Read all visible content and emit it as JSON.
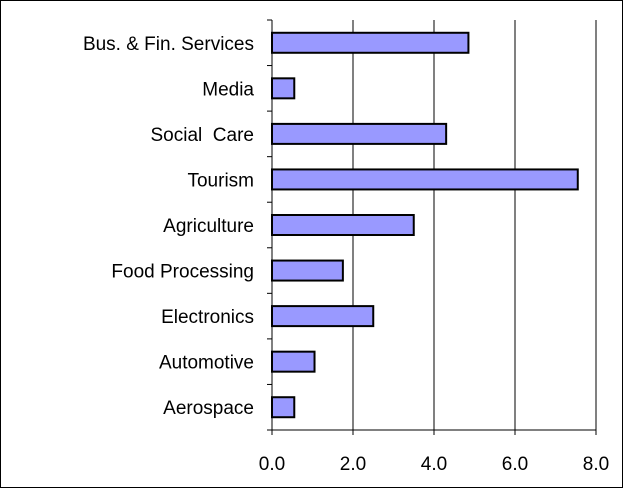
{
  "chart_data": {
    "type": "bar",
    "orientation": "horizontal",
    "categories": [
      "Bus. & Fin. Services",
      "Media",
      "Social  Care",
      "Tourism",
      "Agriculture",
      "Food Processing",
      "Electronics",
      "Automotive",
      "Aerospace"
    ],
    "values": [
      4.85,
      0.55,
      4.3,
      7.55,
      3.5,
      1.75,
      2.5,
      1.05,
      0.55
    ],
    "xlim": [
      0,
      8
    ],
    "xticks": [
      "0.0",
      "2.0",
      "4.0",
      "6.0",
      "8.0"
    ],
    "title": "",
    "xlabel": "",
    "ylabel": "",
    "grid": "vertical",
    "legend": "none",
    "colors": {
      "bar_fill": "#9999ff",
      "bar_stroke": "#000000",
      "grid": "#000000",
      "background": "#ffffff"
    }
  }
}
